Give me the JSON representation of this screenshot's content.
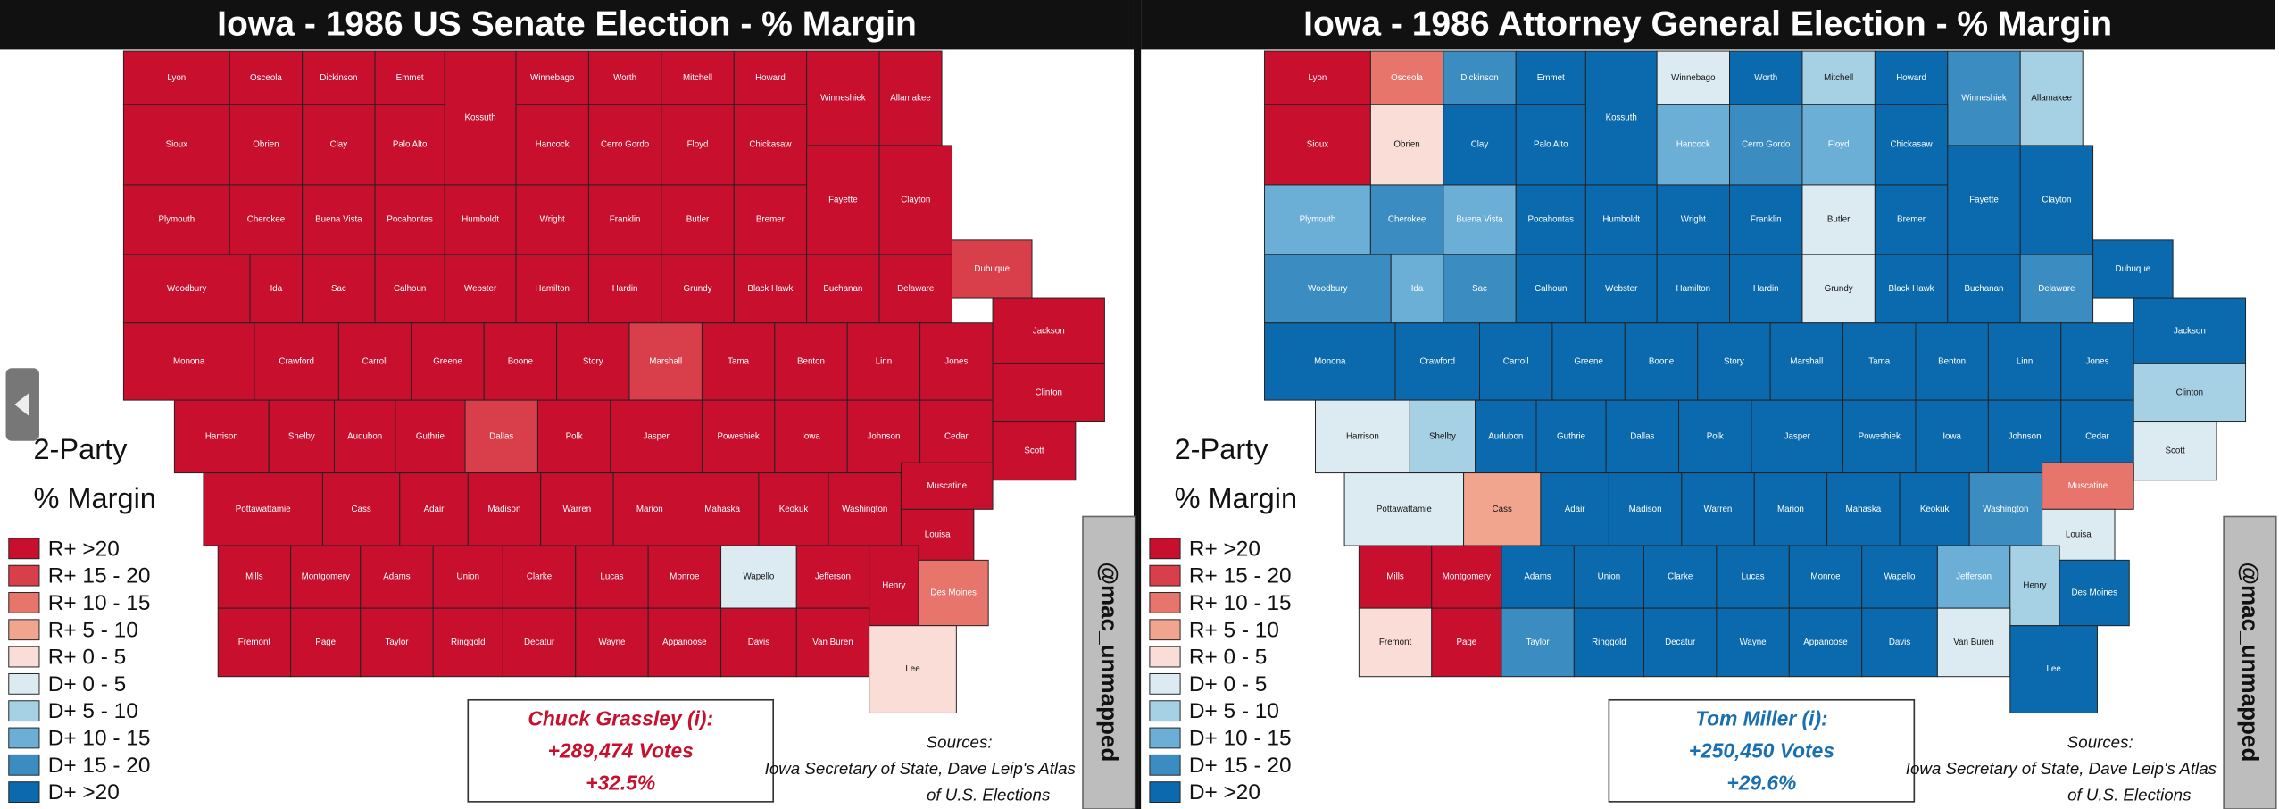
{
  "panels": [
    {
      "title": "Iowa - 1986 US Senate Election - % Margin",
      "legend_title": [
        "2-Party",
        "% Margin"
      ],
      "legend": [
        {
          "label": "R+ >20",
          "color": "#c8102e"
        },
        {
          "label": "R+ 15 - 20",
          "color": "#d93f4a"
        },
        {
          "label": "R+ 10 - 15",
          "color": "#e8756b"
        },
        {
          "label": "R+ 5 - 10",
          "color": "#f2a58e"
        },
        {
          "label": "R+ 0 - 5",
          "color": "#f9ddd6"
        },
        {
          "label": "D+ 0 - 5",
          "color": "#dcebf2"
        },
        {
          "label": "D+ 5 - 10",
          "color": "#a6d0e4"
        },
        {
          "label": "D+ 10 - 15",
          "color": "#6baed6"
        },
        {
          "label": "D+ 15 - 20",
          "color": "#3a8cc1"
        },
        {
          "label": "D+ >20",
          "color": "#0a6aad"
        }
      ],
      "county_names": [
        "Lyon",
        "Osceola",
        "Dickinson",
        "Emmet",
        "Kossuth",
        "Winnebago",
        "Worth",
        "Mitchell",
        "Howard",
        "Winneshiek",
        "Allamakee",
        "Sioux",
        "Obrien",
        "Clay",
        "Palo Alto",
        "Hancock",
        "Cerro Gordo",
        "Floyd",
        "Chickasaw",
        "Plymouth",
        "Cherokee",
        "Buena Vista",
        "Pocahontas",
        "Humboldt",
        "Wright",
        "Franklin",
        "Butler",
        "Bremer",
        "Fayette",
        "Clayton",
        "Woodbury",
        "Ida",
        "Sac",
        "Calhoun",
        "Webster",
        "Hamilton",
        "Hardin",
        "Grundy",
        "Black Hawk",
        "Buchanan",
        "Delaware",
        "Dubuque",
        "Monona",
        "Crawford",
        "Carroll",
        "Greene",
        "Boone",
        "Story",
        "Marshall",
        "Tama",
        "Benton",
        "Linn",
        "Jones",
        "Jackson",
        "Harrison",
        "Shelby",
        "Audubon",
        "Guthrie",
        "Dallas",
        "Polk",
        "Jasper",
        "Poweshiek",
        "Iowa",
        "Johnson",
        "Cedar",
        "Clinton",
        "Scott",
        "Pottawattamie",
        "Cass",
        "Adair",
        "Madison",
        "Warren",
        "Marion",
        "Mahaska",
        "Keokuk",
        "Washington",
        "Muscatine",
        "Louisa",
        "Mills",
        "Montgomery",
        "Adams",
        "Union",
        "Clarke",
        "Lucas",
        "Monroe",
        "Wapello",
        "Jefferson",
        "Henry",
        "Des Moines",
        "Fremont",
        "Page",
        "Taylor",
        "Ringgold",
        "Decatur",
        "Wayne",
        "Appanoose",
        "Davis",
        "Van Buren",
        "Lee"
      ],
      "county_buckets": [
        0,
        0,
        0,
        0,
        0,
        0,
        0,
        0,
        0,
        0,
        0,
        0,
        0,
        0,
        0,
        0,
        0,
        0,
        0,
        0,
        0,
        0,
        0,
        0,
        0,
        0,
        0,
        0,
        0,
        0,
        0,
        0,
        0,
        0,
        0,
        0,
        0,
        0,
        0,
        0,
        0,
        1,
        0,
        0,
        0,
        0,
        0,
        0,
        1,
        0,
        0,
        0,
        0,
        0,
        0,
        0,
        0,
        0,
        1,
        0,
        0,
        0,
        0,
        0,
        0,
        0,
        0,
        0,
        0,
        0,
        0,
        0,
        0,
        0,
        0,
        0,
        0,
        0,
        0,
        0,
        0,
        0,
        0,
        0,
        0,
        5,
        0,
        0,
        2,
        0,
        0,
        0,
        0,
        0,
        0,
        0,
        0,
        0,
        4
      ],
      "winner": [
        "Chuck Grassley (i):",
        "+289,474 Votes",
        "+32.5%"
      ],
      "winner_color": "#c8102e",
      "sources": [
        "Sources:",
        "Iowa Secretary of State, Dave Leip's Atlas",
        "of U.S. Elections"
      ],
      "credit": "@mac_unmapped"
    },
    {
      "title": "Iowa - 1986 Attorney General Election - % Margin",
      "legend_title": [
        "2-Party",
        "% Margin"
      ],
      "legend": [
        {
          "label": "R+ >20",
          "color": "#c8102e"
        },
        {
          "label": "R+ 15 - 20",
          "color": "#d93f4a"
        },
        {
          "label": "R+ 10 - 15",
          "color": "#e8756b"
        },
        {
          "label": "R+ 5 - 10",
          "color": "#f2a58e"
        },
        {
          "label": "R+ 0 - 5",
          "color": "#f9ddd6"
        },
        {
          "label": "D+ 0 - 5",
          "color": "#dcebf2"
        },
        {
          "label": "D+ 5 - 10",
          "color": "#a6d0e4"
        },
        {
          "label": "D+ 10 - 15",
          "color": "#6baed6"
        },
        {
          "label": "D+ 15 - 20",
          "color": "#3a8cc1"
        },
        {
          "label": "D+ >20",
          "color": "#0a6aad"
        }
      ],
      "county_names": [
        "Lyon",
        "Osceola",
        "Dickinson",
        "Emmet",
        "Kossuth",
        "Winnebago",
        "Worth",
        "Mitchell",
        "Howard",
        "Winneshiek",
        "Allamakee",
        "Sioux",
        "Obrien",
        "Clay",
        "Palo Alto",
        "Hancock",
        "Cerro Gordo",
        "Floyd",
        "Chickasaw",
        "Plymouth",
        "Cherokee",
        "Buena Vista",
        "Pocahontas",
        "Humboldt",
        "Wright",
        "Franklin",
        "Butler",
        "Bremer",
        "Fayette",
        "Clayton",
        "Woodbury",
        "Ida",
        "Sac",
        "Calhoun",
        "Webster",
        "Hamilton",
        "Hardin",
        "Grundy",
        "Black Hawk",
        "Buchanan",
        "Delaware",
        "Dubuque",
        "Monona",
        "Crawford",
        "Carroll",
        "Greene",
        "Boone",
        "Story",
        "Marshall",
        "Tama",
        "Benton",
        "Linn",
        "Jones",
        "Jackson",
        "Harrison",
        "Shelby",
        "Audubon",
        "Guthrie",
        "Dallas",
        "Polk",
        "Jasper",
        "Poweshiek",
        "Iowa",
        "Johnson",
        "Cedar",
        "Clinton",
        "Scott",
        "Pottawattamie",
        "Cass",
        "Adair",
        "Madison",
        "Warren",
        "Marion",
        "Mahaska",
        "Keokuk",
        "Washington",
        "Muscatine",
        "Louisa",
        "Mills",
        "Montgomery",
        "Adams",
        "Union",
        "Clarke",
        "Lucas",
        "Monroe",
        "Wapello",
        "Jefferson",
        "Henry",
        "Des Moines",
        "Fremont",
        "Page",
        "Taylor",
        "Ringgold",
        "Decatur",
        "Wayne",
        "Appanoose",
        "Davis",
        "Van Buren",
        "Lee"
      ],
      "county_buckets": [
        0,
        2,
        8,
        9,
        9,
        5,
        9,
        6,
        9,
        8,
        6,
        0,
        4,
        9,
        9,
        7,
        8,
        7,
        9,
        7,
        8,
        7,
        9,
        9,
        9,
        9,
        5,
        9,
        9,
        9,
        8,
        7,
        8,
        9,
        9,
        9,
        9,
        5,
        9,
        9,
        8,
        9,
        9,
        9,
        9,
        9,
        9,
        9,
        9,
        9,
        9,
        9,
        9,
        9,
        5,
        6,
        9,
        9,
        9,
        9,
        9,
        9,
        9,
        9,
        9,
        6,
        5,
        5,
        3,
        9,
        9,
        9,
        9,
        9,
        9,
        8,
        2,
        5,
        0,
        0,
        9,
        9,
        9,
        9,
        9,
        9,
        7,
        6,
        9,
        4,
        0,
        8,
        9,
        9,
        9,
        9,
        9,
        5,
        9
      ],
      "winner": [
        "Tom Miller (i):",
        "+250,450 Votes",
        "+29.6%"
      ],
      "winner_color": "#1a6fb0",
      "sources": [
        "Sources:",
        "Iowa Secretary of State, Dave Leip's Atlas",
        "of U.S. Elections"
      ],
      "credit": "@mac_unmapped"
    }
  ]
}
